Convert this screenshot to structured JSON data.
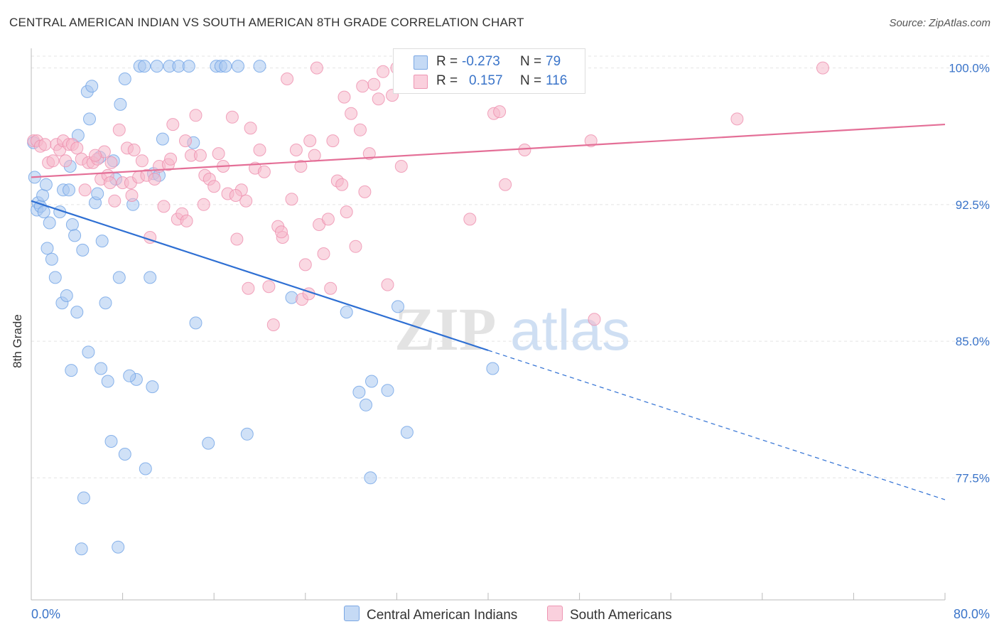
{
  "header": {
    "title": "CENTRAL AMERICAN INDIAN VS SOUTH AMERICAN 8TH GRADE CORRELATION CHART",
    "source": "Source: ZipAtlas.com"
  },
  "watermark": {
    "zip": "ZIP",
    "atlas": "atlas"
  },
  "legend": {
    "r_label": "R =",
    "n_label": "N =",
    "rows": [
      {
        "r": "-0.273",
        "n": "79",
        "color": "#a9c8f0"
      },
      {
        "r": "0.157",
        "n": "116",
        "color": "#f6b8cb"
      }
    ]
  },
  "bottom_legend": {
    "items": [
      {
        "label": "Central American Indians",
        "color": "#a9c8f0"
      },
      {
        "label": "South Americans",
        "color": "#f6b8cb"
      }
    ]
  },
  "chart_data": {
    "type": "scatter",
    "title": "CENTRAL AMERICAN INDIAN VS SOUTH AMERICAN 8TH GRADE CORRELATION CHART",
    "xlabel": "",
    "ylabel": "8th Grade",
    "xlim": [
      0,
      80
    ],
    "ylim": [
      70.8,
      101.0
    ],
    "x_tick_labels": [
      "0.0%",
      "80.0%"
    ],
    "y_ticks": [
      {
        "value": 100.0,
        "label": "100.0%"
      },
      {
        "value": 92.5,
        "label": "92.5%"
      },
      {
        "value": 85.0,
        "label": "85.0%"
      },
      {
        "value": 77.5,
        "label": "77.5%"
      }
    ],
    "grid": true,
    "series": [
      {
        "name": "Central American Indians",
        "color": "#6fa3e6",
        "fill": "#a9c8f0",
        "trend": {
          "x0": 0,
          "y0": 92.7,
          "x1": 40,
          "y1": 84.5,
          "dash_to_x": 80,
          "dash_to_y": 76.3,
          "color": "#2e6fd3"
        },
        "points": [
          [
            0.2,
            95.9
          ],
          [
            0.3,
            94.0
          ],
          [
            0.5,
            92.2
          ],
          [
            0.6,
            92.6
          ],
          [
            0.8,
            92.4
          ],
          [
            1.0,
            93.0
          ],
          [
            1.1,
            92.1
          ],
          [
            1.3,
            93.6
          ],
          [
            1.4,
            90.1
          ],
          [
            1.6,
            91.5
          ],
          [
            1.8,
            89.5
          ],
          [
            2.1,
            88.5
          ],
          [
            2.5,
            92.1
          ],
          [
            2.8,
            93.3
          ],
          [
            2.7,
            87.1
          ],
          [
            3.1,
            87.5
          ],
          [
            3.3,
            93.3
          ],
          [
            3.4,
            94.6
          ],
          [
            3.6,
            91.4
          ],
          [
            3.8,
            90.8
          ],
          [
            4.0,
            86.6
          ],
          [
            4.1,
            96.3
          ],
          [
            4.5,
            90.0
          ],
          [
            4.9,
            98.7
          ],
          [
            5.1,
            97.2
          ],
          [
            5.3,
            99.0
          ],
          [
            5.6,
            92.6
          ],
          [
            5.8,
            93.1
          ],
          [
            6.0,
            95.1
          ],
          [
            6.2,
            90.5
          ],
          [
            6.5,
            87.1
          ],
          [
            6.7,
            82.8
          ],
          [
            7.2,
            94.9
          ],
          [
            7.4,
            93.9
          ],
          [
            7.7,
            88.5
          ],
          [
            7.8,
            98.0
          ],
          [
            8.2,
            99.4
          ],
          [
            8.9,
            92.5
          ],
          [
            9.2,
            82.9
          ],
          [
            9.5,
            100.1
          ],
          [
            9.9,
            100.1
          ],
          [
            10.4,
            88.5
          ],
          [
            10.7,
            94.2
          ],
          [
            11.2,
            94.1
          ],
          [
            11.0,
            100.1
          ],
          [
            11.5,
            96.1
          ],
          [
            12.1,
            100.1
          ],
          [
            12.9,
            100.1
          ],
          [
            13.8,
            100.1
          ],
          [
            14.2,
            95.9
          ],
          [
            14.4,
            86.0
          ],
          [
            16.2,
            100.1
          ],
          [
            16.6,
            100.1
          ],
          [
            17.0,
            100.1
          ],
          [
            18.1,
            100.1
          ],
          [
            20.0,
            100.1
          ],
          [
            22.8,
            87.4
          ],
          [
            27.6,
            86.6
          ],
          [
            28.7,
            82.2
          ],
          [
            29.3,
            81.5
          ],
          [
            29.8,
            82.8
          ],
          [
            31.2,
            82.3
          ],
          [
            32.1,
            86.9
          ],
          [
            40.4,
            83.5
          ],
          [
            32.9,
            80.0
          ],
          [
            29.7,
            77.5
          ],
          [
            18.9,
            79.9
          ],
          [
            15.5,
            79.4
          ],
          [
            7.0,
            79.5
          ],
          [
            8.2,
            78.8
          ],
          [
            10.0,
            78.0
          ],
          [
            4.6,
            76.4
          ],
          [
            4.4,
            73.6
          ],
          [
            7.6,
            73.7
          ],
          [
            3.5,
            83.4
          ],
          [
            6.1,
            83.5
          ],
          [
            8.6,
            83.1
          ],
          [
            10.6,
            82.5
          ],
          [
            5.0,
            84.4
          ]
        ]
      },
      {
        "name": "South Americans",
        "color": "#ee8fae",
        "fill": "#f6b8cb",
        "trend": {
          "x0": 0,
          "y0": 94.0,
          "x1": 80,
          "y1": 96.9,
          "color": "#e46f97"
        },
        "points": [
          [
            0.2,
            96.0
          ],
          [
            0.5,
            96.0
          ],
          [
            0.8,
            95.7
          ],
          [
            1.2,
            95.8
          ],
          [
            1.5,
            94.8
          ],
          [
            1.9,
            94.9
          ],
          [
            2.2,
            95.8
          ],
          [
            2.5,
            95.5
          ],
          [
            2.8,
            96.0
          ],
          [
            3.3,
            95.8
          ],
          [
            3.6,
            95.8
          ],
          [
            4.0,
            95.6
          ],
          [
            4.4,
            95.0
          ],
          [
            4.7,
            93.3
          ],
          [
            5.0,
            94.8
          ],
          [
            5.4,
            94.8
          ],
          [
            5.8,
            95.0
          ],
          [
            6.1,
            93.9
          ],
          [
            6.4,
            95.4
          ],
          [
            6.7,
            94.1
          ],
          [
            7.0,
            94.8
          ],
          [
            7.3,
            92.7
          ],
          [
            7.7,
            96.6
          ],
          [
            8.0,
            93.7
          ],
          [
            8.4,
            95.6
          ],
          [
            8.7,
            93.7
          ],
          [
            9.0,
            95.5
          ],
          [
            9.4,
            94.0
          ],
          [
            9.7,
            94.9
          ],
          [
            10.1,
            94.1
          ],
          [
            10.4,
            90.7
          ],
          [
            10.8,
            93.9
          ],
          [
            11.2,
            94.6
          ],
          [
            11.6,
            92.4
          ],
          [
            12.0,
            94.7
          ],
          [
            12.4,
            96.9
          ],
          [
            12.8,
            91.7
          ],
          [
            13.2,
            92.0
          ],
          [
            13.6,
            91.6
          ],
          [
            14.0,
            95.2
          ],
          [
            14.4,
            97.4
          ],
          [
            14.8,
            95.2
          ],
          [
            15.2,
            94.1
          ],
          [
            15.6,
            93.9
          ],
          [
            16.0,
            93.5
          ],
          [
            16.4,
            95.3
          ],
          [
            16.8,
            94.6
          ],
          [
            17.2,
            93.1
          ],
          [
            17.6,
            97.3
          ],
          [
            18.0,
            90.6
          ],
          [
            18.4,
            93.3
          ],
          [
            18.8,
            92.7
          ],
          [
            19.2,
            96.7
          ],
          [
            19.6,
            94.5
          ],
          [
            20.0,
            95.5
          ],
          [
            20.4,
            94.3
          ],
          [
            20.8,
            88.0
          ],
          [
            21.2,
            85.9
          ],
          [
            21.6,
            91.3
          ],
          [
            22.0,
            90.7
          ],
          [
            22.4,
            99.4
          ],
          [
            22.8,
            92.8
          ],
          [
            23.2,
            95.5
          ],
          [
            23.6,
            94.6
          ],
          [
            24.0,
            89.2
          ],
          [
            24.4,
            96.0
          ],
          [
            24.8,
            95.2
          ],
          [
            25.2,
            91.4
          ],
          [
            25.6,
            89.8
          ],
          [
            26.0,
            91.7
          ],
          [
            26.4,
            96.0
          ],
          [
            26.8,
            93.8
          ],
          [
            27.2,
            93.6
          ],
          [
            27.6,
            92.1
          ],
          [
            28.0,
            97.5
          ],
          [
            28.4,
            90.2
          ],
          [
            28.8,
            96.6
          ],
          [
            29.2,
            93.2
          ],
          [
            29.6,
            95.3
          ],
          [
            30.0,
            99.1
          ],
          [
            30.4,
            98.3
          ],
          [
            30.8,
            99.8
          ],
          [
            31.2,
            88.1
          ],
          [
            31.6,
            98.5
          ],
          [
            32.0,
            100.0
          ],
          [
            32.4,
            94.6
          ],
          [
            33.0,
            99.2
          ],
          [
            34.0,
            99.6
          ],
          [
            35.0,
            99.4
          ],
          [
            36.0,
            99.8
          ],
          [
            38.5,
            99.7
          ],
          [
            40.5,
            97.5
          ],
          [
            41.0,
            97.6
          ],
          [
            41.5,
            93.6
          ],
          [
            38.4,
            91.7
          ],
          [
            43.2,
            95.5
          ],
          [
            49.3,
            86.2
          ],
          [
            49.0,
            96.0
          ],
          [
            61.8,
            97.2
          ],
          [
            69.3,
            100.0
          ],
          [
            8.8,
            93.0
          ],
          [
            12.2,
            95.0
          ],
          [
            13.5,
            96.0
          ],
          [
            15.1,
            92.5
          ],
          [
            17.9,
            93.0
          ],
          [
            19.0,
            87.9
          ],
          [
            21.9,
            91.0
          ],
          [
            23.7,
            87.3
          ],
          [
            26.2,
            87.9
          ],
          [
            24.3,
            87.6
          ],
          [
            25.0,
            100.0
          ],
          [
            27.4,
            98.4
          ],
          [
            29.0,
            99.0
          ],
          [
            6.9,
            93.7
          ],
          [
            3.0,
            94.9
          ],
          [
            5.6,
            95.2
          ]
        ]
      }
    ]
  }
}
